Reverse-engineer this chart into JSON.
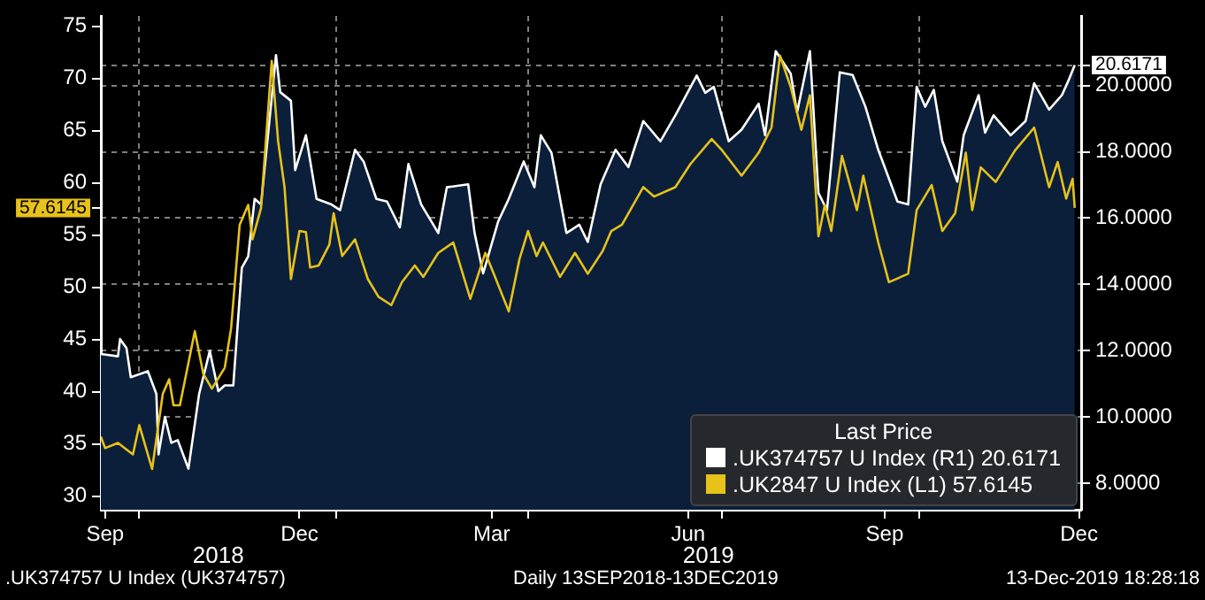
{
  "chart_data": {
    "type": "line",
    "xlim": [
      "2018-09-13",
      "2019-12-16"
    ],
    "xticks": [
      {
        "value": "2018-09-15",
        "label": "Sep"
      },
      {
        "value": "2018-10-01",
        "label": null
      },
      {
        "value": "2018-12-15",
        "label": "Dec"
      },
      {
        "value": "2019-01-01",
        "label": null
      },
      {
        "value": "2019-03-15",
        "label": "Mar"
      },
      {
        "value": "2019-04-01",
        "label": null
      },
      {
        "value": "2019-06-15",
        "label": "Jun"
      },
      {
        "value": "2019-07-01",
        "label": null
      },
      {
        "value": "2019-09-15",
        "label": "Sep"
      },
      {
        "value": "2019-10-01",
        "label": null
      },
      {
        "value": "2019-12-15",
        "label": "Dec"
      }
    ],
    "ylim": [
      28.7,
      76
    ],
    "yticks": [
      30,
      35,
      40,
      45,
      50,
      55,
      {
        "value": 57.6145,
        "label": "57.6145"
      },
      60,
      65,
      70,
      75
    ],
    "y2lim": [
      7.2,
      22.1
    ],
    "y2ticks": [
      {
        "value": 8,
        "label": "8.0000"
      },
      {
        "value": 10,
        "label": "10.0000"
      },
      {
        "value": 12,
        "label": "12.0000"
      },
      {
        "value": 14,
        "label": "14.0000"
      },
      {
        "value": 16,
        "label": "16.0000"
      },
      {
        "value": 18,
        "label": "18.0000"
      },
      {
        "value": 20,
        "label": "20.0000"
      },
      {
        "value": 20.6171,
        "label": "20.6171"
      }
    ],
    "grid": true,
    "legend": "bottom right",
    "legend_title": "Last Price",
    "annotations": [
      "2018",
      "2019",
      ".UK374757 U Index (UK374757)",
      "Daily 13SEP2018-13DEC2019",
      "13-Dec-2019 18:28:18"
    ],
    "series": [
      {
        "name": ".UK374757 U Index (R1) 20.6171",
        "type": "area",
        "axis": "y2",
        "color": "#ffffff",
        "x": [
          "2018-09-13",
          "2018-09-21",
          "2018-09-22",
          "2018-09-25",
          "2018-09-27",
          "2018-10-05",
          "2018-10-09",
          "2018-10-10",
          "2018-10-13",
          "2018-10-16",
          "2018-10-19",
          "2018-10-24",
          "2018-10-29",
          "2018-11-03",
          "2018-11-07",
          "2018-11-10",
          "2018-11-14",
          "2018-11-18",
          "2018-11-21",
          "2018-11-24",
          "2018-11-27",
          "2018-12-04",
          "2018-12-06",
          "2018-12-11",
          "2018-12-13",
          "2018-12-18",
          "2018-12-23",
          "2018-12-30",
          "2019-01-03",
          "2019-01-10",
          "2019-01-14",
          "2019-01-20",
          "2019-01-25",
          "2019-01-31",
          "2019-02-04",
          "2019-02-10",
          "2019-02-18",
          "2019-02-22",
          "2019-03-04",
          "2019-03-07",
          "2019-03-11",
          "2019-03-18",
          "2019-03-23",
          "2019-03-30",
          "2019-04-04",
          "2019-04-07",
          "2019-04-12",
          "2019-04-19",
          "2019-04-25",
          "2019-04-29",
          "2019-05-05",
          "2019-05-12",
          "2019-05-18",
          "2019-05-25",
          "2019-06-02",
          "2019-06-09",
          "2019-06-19",
          "2019-06-23",
          "2019-06-27",
          "2019-07-04",
          "2019-07-10",
          "2019-07-18",
          "2019-07-21",
          "2019-07-26",
          "2019-08-02",
          "2019-08-05",
          "2019-08-11",
          "2019-08-15",
          "2019-08-19",
          "2019-08-25",
          "2019-08-31",
          "2019-09-06",
          "2019-09-12",
          "2019-09-21",
          "2019-09-26",
          "2019-09-30",
          "2019-10-04",
          "2019-10-08",
          "2019-10-12",
          "2019-10-19",
          "2019-10-22",
          "2019-10-29",
          "2019-11-01",
          "2019-11-05",
          "2019-11-13",
          "2019-11-20",
          "2019-11-24",
          "2019-12-01",
          "2019-12-07",
          "2019-12-10",
          "2019-12-13"
        ],
        "values": [
          11.9,
          11.83,
          12.35,
          12.08,
          11.2,
          11.38,
          10.69,
          8.87,
          10.0,
          9.22,
          9.3,
          8.44,
          10.69,
          11.99,
          10.78,
          10.95,
          10.95,
          14.5,
          14.85,
          16.58,
          16.41,
          20.92,
          19.8,
          19.54,
          17.45,
          18.5,
          16.58,
          16.41,
          16.24,
          18.06,
          17.71,
          16.58,
          16.5,
          15.72,
          17.63,
          16.41,
          15.55,
          16.93,
          17.02,
          15.55,
          14.33,
          15.89,
          16.58,
          17.71,
          16.93,
          18.5,
          17.97,
          15.55,
          15.8,
          15.28,
          17.02,
          18.06,
          17.54,
          18.93,
          18.32,
          19.1,
          20.3,
          19.78,
          19.96,
          18.32,
          18.67,
          19.45,
          18.5,
          21.04,
          20.36,
          19.19,
          21.04,
          16.76,
          16.24,
          20.4,
          20.32,
          19.36,
          18.06,
          16.5,
          16.41,
          19.96,
          19.36,
          19.87,
          18.32,
          17.1,
          18.5,
          19.71,
          18.58,
          19.1,
          18.5,
          18.93,
          20.07,
          19.27,
          19.71,
          20.14,
          20.6171
        ]
      },
      {
        "name": ".UK2847 U Index (L1) 57.6145",
        "axis": "y",
        "color": "#e6c21a",
        "x": [
          "2018-09-13",
          "2018-09-15",
          "2018-09-21",
          "2018-09-28",
          "2018-10-01",
          "2018-10-07",
          "2018-10-12",
          "2018-10-15",
          "2018-10-17",
          "2018-10-20",
          "2018-10-27",
          "2018-10-31",
          "2018-11-04",
          "2018-11-10",
          "2018-11-13",
          "2018-11-17",
          "2018-11-21",
          "2018-11-23",
          "2018-11-27",
          "2018-12-02",
          "2018-12-05",
          "2018-12-08",
          "2018-12-11",
          "2018-12-15",
          "2018-12-18",
          "2018-12-20",
          "2018-12-24",
          "2018-12-29",
          "2018-12-31",
          "2019-01-04",
          "2019-01-10",
          "2019-01-16",
          "2019-01-21",
          "2019-01-27",
          "2019-02-01",
          "2019-02-07",
          "2019-02-11",
          "2019-02-18",
          "2019-02-25",
          "2019-03-05",
          "2019-03-12",
          "2019-03-16",
          "2019-03-23",
          "2019-03-28",
          "2019-04-01",
          "2019-04-05",
          "2019-04-08",
          "2019-04-16",
          "2019-04-23",
          "2019-04-29",
          "2019-05-06",
          "2019-05-10",
          "2019-05-15",
          "2019-05-25",
          "2019-05-30",
          "2019-06-09",
          "2019-06-16",
          "2019-06-26",
          "2019-07-01",
          "2019-07-10",
          "2019-07-18",
          "2019-07-24",
          "2019-07-28",
          "2019-08-02",
          "2019-08-07",
          "2019-08-11",
          "2019-08-15",
          "2019-08-18",
          "2019-08-21",
          "2019-08-26",
          "2019-09-02",
          "2019-09-05",
          "2019-09-12",
          "2019-09-17",
          "2019-09-26",
          "2019-09-30",
          "2019-10-07",
          "2019-10-12",
          "2019-10-18",
          "2019-10-23",
          "2019-10-26",
          "2019-10-30",
          "2019-11-06",
          "2019-11-15",
          "2019-11-24",
          "2019-12-01",
          "2019-12-05",
          "2019-12-09",
          "2019-12-12",
          "2019-12-13"
        ],
        "values": [
          35.7,
          34.6,
          35.1,
          34.0,
          36.8,
          32.6,
          39.8,
          41.2,
          38.7,
          38.7,
          45.8,
          41.7,
          40.3,
          42.3,
          46.1,
          56.0,
          57.9,
          54.6,
          57.6,
          71.7,
          64.0,
          59.6,
          50.8,
          55.4,
          55.3,
          51.9,
          52.1,
          54.1,
          57.1,
          53.0,
          54.6,
          50.8,
          49.1,
          48.3,
          50.5,
          52.1,
          51.0,
          53.3,
          54.3,
          48.9,
          53.3,
          51.3,
          47.7,
          52.7,
          55.4,
          53.0,
          54.3,
          51.0,
          53.3,
          51.3,
          53.5,
          55.4,
          56.0,
          59.6,
          58.7,
          59.6,
          61.8,
          64.2,
          63.1,
          60.7,
          62.9,
          65.3,
          72.2,
          69.2,
          65.1,
          68.4,
          54.9,
          57.9,
          55.4,
          62.6,
          57.4,
          60.7,
          54.3,
          50.5,
          51.3,
          57.4,
          59.8,
          55.4,
          57.1,
          62.9,
          57.4,
          61.5,
          60.1,
          63.1,
          65.3,
          59.6,
          62.0,
          58.5,
          60.4,
          57.6145
        ]
      }
    ]
  }
}
